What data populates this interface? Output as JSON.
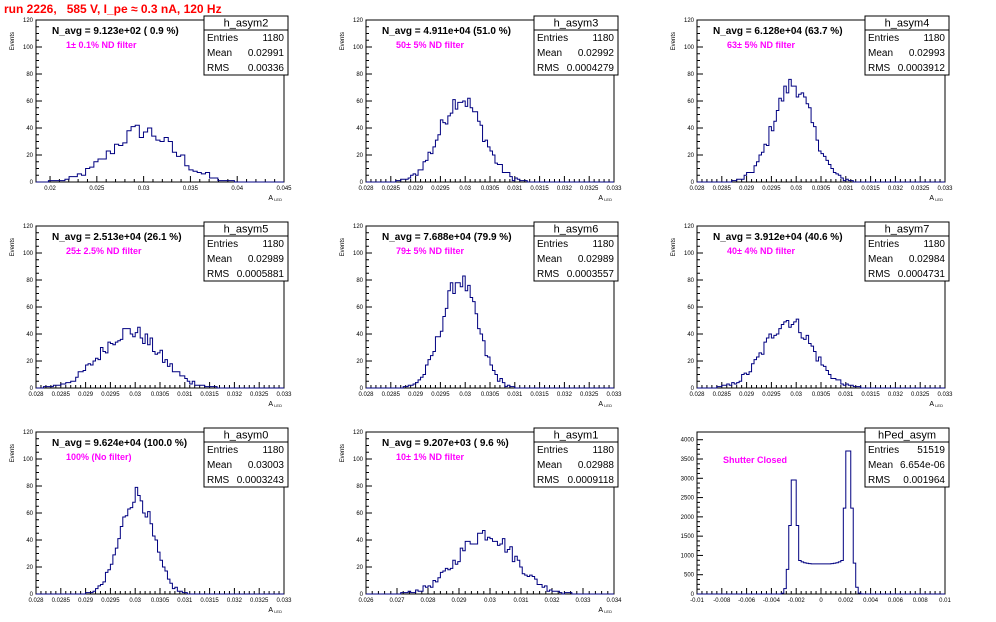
{
  "page": {
    "title": "run 2226,   585 V, I_pe ≈ 0.3 nA, 120 Hz"
  },
  "colors": {
    "histogram": "#000080",
    "annotation": "#ff00ff",
    "title": "#ff0000"
  },
  "chart_data": [
    {
      "type": "histogram",
      "name": "h_asym2",
      "navg": "N_avg = 9.123e+02 ( 0.9 %)",
      "note": "1± 0.1% ND filter",
      "stats": {
        "Entries": "1180",
        "Mean": "0.02991",
        "RMS": "0.00336"
      },
      "xlim": [
        0.0185,
        0.045
      ],
      "ylim": [
        0,
        120
      ],
      "xticks": [
        "0.02",
        "0.025",
        "0.03",
        "0.035",
        "0.04",
        "0.045"
      ],
      "yticks": [
        "0",
        "20",
        "40",
        "60",
        "80",
        "100",
        "120"
      ],
      "ylabel": "Events",
      "xlabel": "A_LED",
      "mean": 0.02991,
      "sigma": 0.00336,
      "peak": 38,
      "nbins": 60,
      "jitter": 6,
      "extra_peak": 0
    },
    {
      "type": "histogram",
      "name": "h_asym3",
      "navg": "N_avg = 4.911e+04 (51.0 %)",
      "note": "50± 5% ND filter",
      "stats": {
        "Entries": "1180",
        "Mean": "0.02992",
        "RMS": "0.0004279"
      },
      "xlim": [
        0.028,
        0.033
      ],
      "ylim": [
        0,
        120
      ],
      "xticks": [
        "0.028",
        "0.0285",
        "0.029",
        "0.0295",
        "0.03",
        "0.0305",
        "0.031",
        "0.0315",
        "0.032",
        "0.0325",
        "0.033"
      ],
      "yticks": [
        "0",
        "20",
        "40",
        "60",
        "80",
        "100",
        "120"
      ],
      "ylabel": "Events",
      "xlabel": "A_LED",
      "mean": 0.02992,
      "sigma": 0.000428,
      "peak": 62,
      "nbins": 100,
      "jitter": 7,
      "extra_peak": 0
    },
    {
      "type": "histogram",
      "name": "h_asym4",
      "navg": "N_avg = 6.128e+04 (63.7 %)",
      "note": "63± 5% ND filter",
      "stats": {
        "Entries": "1180",
        "Mean": "0.02993",
        "RMS": "0.0003912"
      },
      "xlim": [
        0.028,
        0.033
      ],
      "ylim": [
        0,
        120
      ],
      "xticks": [
        "0.028",
        "0.0285",
        "0.029",
        "0.0295",
        "0.03",
        "0.0305",
        "0.031",
        "0.0315",
        "0.032",
        "0.0325",
        "0.033"
      ],
      "yticks": [
        "0",
        "20",
        "40",
        "60",
        "80",
        "100",
        "120"
      ],
      "ylabel": "Events",
      "xlabel": "A_LED",
      "mean": 0.02993,
      "sigma": 0.000391,
      "peak": 72,
      "nbins": 100,
      "jitter": 7,
      "extra_peak": 0
    },
    {
      "type": "histogram",
      "name": "h_asym5",
      "navg": "N_avg = 2.513e+04 (26.1 %)",
      "note": "25± 2.5% ND filter",
      "stats": {
        "Entries": "1180",
        "Mean": "0.02989",
        "RMS": "0.0005881"
      },
      "xlim": [
        0.028,
        0.033
      ],
      "ylim": [
        0,
        120
      ],
      "xticks": [
        "0.028",
        "0.0285",
        "0.029",
        "0.0295",
        "0.03",
        "0.0305",
        "0.031",
        "0.0315",
        "0.032",
        "0.0325",
        "0.033"
      ],
      "yticks": [
        "0",
        "20",
        "40",
        "60",
        "80",
        "100",
        "120"
      ],
      "ylabel": "Events",
      "xlabel": "A_LED",
      "mean": 0.02989,
      "sigma": 0.000588,
      "peak": 42,
      "nbins": 100,
      "jitter": 6,
      "extra_peak": 0
    },
    {
      "type": "histogram",
      "name": "h_asym6",
      "navg": "N_avg = 7.688e+04 (79.9 %)",
      "note": "79± 5% ND filter",
      "stats": {
        "Entries": "1180",
        "Mean": "0.02989",
        "RMS": "0.0003557"
      },
      "xlim": [
        0.028,
        0.033
      ],
      "ylim": [
        0,
        120
      ],
      "xticks": [
        "0.028",
        "0.0285",
        "0.029",
        "0.0295",
        "0.03",
        "0.0305",
        "0.031",
        "0.0315",
        "0.032",
        "0.0325",
        "0.033"
      ],
      "yticks": [
        "0",
        "20",
        "40",
        "60",
        "80",
        "100",
        "120"
      ],
      "ylabel": "Events",
      "xlabel": "A_LED",
      "mean": 0.02989,
      "sigma": 0.000356,
      "peak": 80,
      "nbins": 100,
      "jitter": 7,
      "extra_peak": 0
    },
    {
      "type": "histogram",
      "name": "h_asym7",
      "navg": "N_avg = 3.912e+04 (40.6 %)",
      "note": "40± 4% ND filter",
      "stats": {
        "Entries": "1180",
        "Mean": "0.02984",
        "RMS": "0.0004731"
      },
      "xlim": [
        0.028,
        0.033
      ],
      "ylim": [
        0,
        120
      ],
      "xticks": [
        "0.028",
        "0.0285",
        "0.029",
        "0.0295",
        "0.03",
        "0.0305",
        "0.031",
        "0.0315",
        "0.032",
        "0.0325",
        "0.033"
      ],
      "yticks": [
        "0",
        "20",
        "40",
        "60",
        "80",
        "100",
        "120"
      ],
      "ylabel": "Events",
      "xlabel": "A_LED",
      "mean": 0.02984,
      "sigma": 0.000473,
      "peak": 50,
      "nbins": 100,
      "jitter": 6,
      "extra_peak": 0
    },
    {
      "type": "histogram",
      "name": "h_asym0",
      "navg": "N_avg = 9.624e+04 (100.0 %)",
      "note": "100% (No filter)",
      "stats": {
        "Entries": "1180",
        "Mean": "0.03003",
        "RMS": "0.0003243"
      },
      "xlim": [
        0.028,
        0.033
      ],
      "ylim": [
        0,
        120
      ],
      "xticks": [
        "0.028",
        "0.0285",
        "0.029",
        "0.0295",
        "0.03",
        "0.0305",
        "0.031",
        "0.0315",
        "0.032",
        "0.0325",
        "0.033"
      ],
      "yticks": [
        "0",
        "20",
        "40",
        "60",
        "80",
        "100",
        "120"
      ],
      "ylabel": "Events",
      "xlabel": "A_LED",
      "mean": 0.03003,
      "sigma": 0.000324,
      "peak": 74,
      "nbins": 100,
      "jitter": 7,
      "extra_peak": 0
    },
    {
      "type": "histogram",
      "name": "h_asym1",
      "navg": "N_avg = 9.207e+03 ( 9.6 %)",
      "note": "10± 1% ND filter",
      "stats": {
        "Entries": "1180",
        "Mean": "0.02988",
        "RMS": "0.0009118"
      },
      "xlim": [
        0.026,
        0.034
      ],
      "ylim": [
        0,
        120
      ],
      "xticks": [
        "0.026",
        "0.027",
        "0.028",
        "0.029",
        "0.03",
        "0.031",
        "0.032",
        "0.033",
        "0.034"
      ],
      "yticks": [
        "0",
        "20",
        "40",
        "60",
        "80",
        "100",
        "120"
      ],
      "ylabel": "Events",
      "xlabel": "A_LED",
      "mean": 0.02988,
      "sigma": 0.000912,
      "peak": 45,
      "nbins": 100,
      "jitter": 6,
      "extra_peak": 0
    },
    {
      "type": "histogram",
      "name": "hPed_asym",
      "navg": "",
      "note": "Shutter Closed",
      "stats": {
        "Entries": "51519",
        "Mean": "6.654e-06",
        "RMS": "0.001964"
      },
      "xlim": [
        -0.01,
        0.01
      ],
      "ylim": [
        0,
        4200
      ],
      "xticks": [
        "-0.01",
        "-0.008",
        "-0.006",
        "-0.004",
        "-0.002",
        "0",
        "0.002",
        "0.004",
        "0.006",
        "0.008",
        "0.01"
      ],
      "yticks": [
        "0",
        "500",
        "1000",
        "1500",
        "2000",
        "2500",
        "3000",
        "3500",
        "4000"
      ],
      "ylabel": "",
      "xlabel": "",
      "mean": 0.0,
      "sigma": 0.002,
      "peak": 4000,
      "nbins": 100,
      "jitter": 0,
      "extra_peak": 1
    }
  ]
}
